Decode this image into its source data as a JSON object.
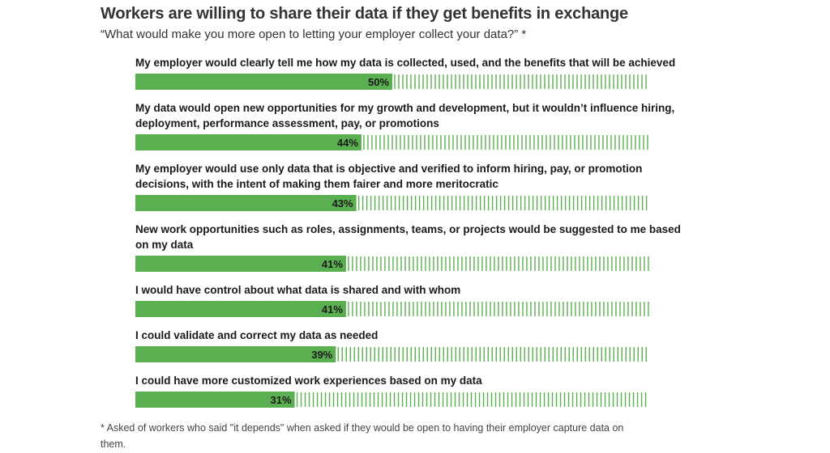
{
  "title": "Workers are willing to share their data if they get benefits in exchange",
  "subtitle": "“What would make you more open to letting your employer collect your data?” *",
  "footnote": "* Asked of workers who said \"it depends\" when asked if they would be open to having their employer capture data on them.",
  "colors": {
    "bar": "#5aaf50",
    "hatch": "#5aaf50",
    "label": "#1a1a1a"
  },
  "chart_data": {
    "type": "bar",
    "orientation": "horizontal",
    "categories": [
      [
        "My employer would clearly tell me how my data is collected, used, and the benefits that will be achieved"
      ],
      [
        "My data would open new opportunities for my growth and development, but it wouldn’t influence hiring,",
        "deployment, performance assessment, pay, or promotions"
      ],
      [
        "My employer would use only data that is objective and verified to inform hiring, pay, or promotion",
        "decisions, with the intent of making them fairer and more meritocratic"
      ],
      [
        "New work opportunities such as roles, assignments, teams, or projects would be suggested to me based",
        "on my data"
      ],
      [
        "I would have control about what data is shared and with whom"
      ],
      [
        "I could validate and correct my data as needed"
      ],
      [
        "I could have more customized work experiences based on my data"
      ]
    ],
    "values": [
      50,
      44,
      43,
      41,
      41,
      39,
      31
    ],
    "value_labels": [
      "50%",
      "44%",
      "43%",
      "41%",
      "41%",
      "39%",
      "31%"
    ],
    "xlim": [
      0,
      100
    ],
    "grid": false,
    "legend": "none"
  }
}
